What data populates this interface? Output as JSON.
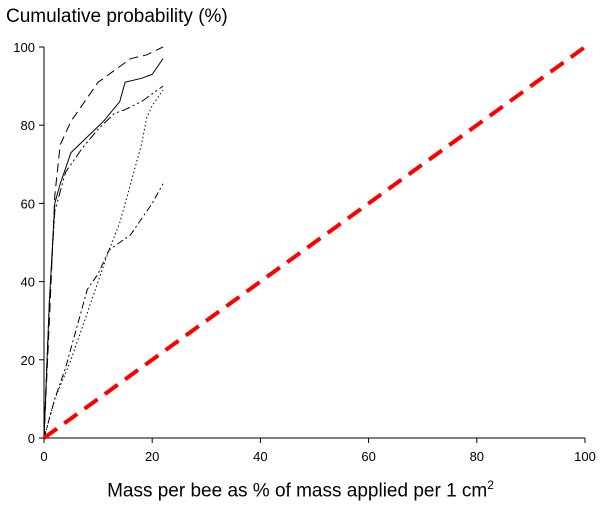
{
  "chart_data": {
    "type": "line",
    "ylabel": "Cumulative probability (%)",
    "xlabel": "Mass per bee as % of mass applied per 1 cm",
    "xlabel_superscript": "2",
    "xlim": [
      0,
      100
    ],
    "ylim": [
      0,
      100
    ],
    "xticks": [
      0,
      20,
      40,
      60,
      80,
      100
    ],
    "yticks": [
      0,
      20,
      40,
      60,
      80,
      100
    ],
    "grid": false,
    "series": [
      {
        "style": "long-dash",
        "color": "#000000",
        "points": [
          [
            0,
            0
          ],
          [
            1,
            30
          ],
          [
            2,
            62
          ],
          [
            3,
            75
          ],
          [
            5,
            81
          ],
          [
            8,
            87
          ],
          [
            10,
            91
          ],
          [
            13,
            94
          ],
          [
            16,
            97
          ],
          [
            19,
            98
          ],
          [
            22,
            100
          ]
        ]
      },
      {
        "style": "solid",
        "color": "#000000",
        "points": [
          [
            0,
            0
          ],
          [
            1,
            35
          ],
          [
            2,
            60
          ],
          [
            3,
            65
          ],
          [
            5,
            73
          ],
          [
            8,
            77
          ],
          [
            11,
            81
          ],
          [
            14,
            86
          ],
          [
            15,
            91
          ],
          [
            18,
            92
          ],
          [
            20,
            93
          ],
          [
            22,
            97
          ]
        ]
      },
      {
        "style": "dash-dot-dot",
        "color": "#000000",
        "points": [
          [
            0,
            0
          ],
          [
            1,
            35
          ],
          [
            2,
            58
          ],
          [
            4,
            68
          ],
          [
            7,
            74
          ],
          [
            10,
            79
          ],
          [
            13,
            83
          ],
          [
            15,
            84
          ],
          [
            18,
            86
          ],
          [
            20,
            88
          ],
          [
            22,
            90
          ]
        ]
      },
      {
        "style": "dotted",
        "color": "#000000",
        "points": [
          [
            0,
            0
          ],
          [
            2,
            10
          ],
          [
            5,
            20
          ],
          [
            8,
            32
          ],
          [
            10,
            40
          ],
          [
            12,
            48
          ],
          [
            14,
            55
          ],
          [
            16,
            65
          ],
          [
            18,
            75
          ],
          [
            19,
            82
          ],
          [
            20,
            85
          ],
          [
            22,
            89
          ]
        ]
      },
      {
        "style": "dash-dot",
        "color": "#000000",
        "points": [
          [
            0,
            0
          ],
          [
            2,
            10
          ],
          [
            4,
            18
          ],
          [
            6,
            28
          ],
          [
            8,
            38
          ],
          [
            10,
            42
          ],
          [
            12,
            48
          ],
          [
            14,
            50
          ],
          [
            16,
            52
          ],
          [
            18,
            56
          ],
          [
            20,
            60
          ],
          [
            22,
            65
          ]
        ]
      },
      {
        "style": "thick-dash",
        "color": "#ff0000",
        "points": [
          [
            0,
            0
          ],
          [
            100,
            100
          ]
        ]
      }
    ]
  }
}
